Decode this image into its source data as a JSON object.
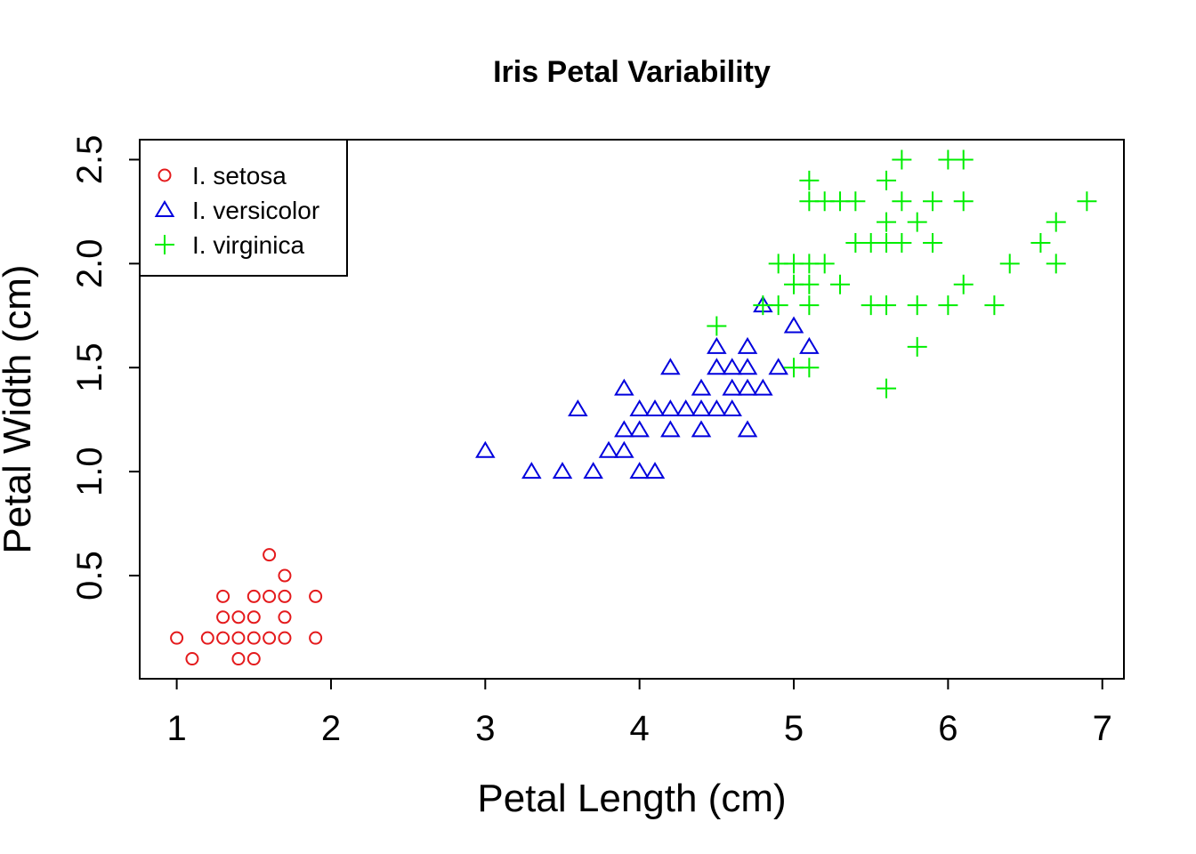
{
  "chart_data": {
    "type": "scatter",
    "title": "Iris Petal Variability",
    "xlabel": "Petal Length (cm)",
    "ylabel": "Petal Width (cm)",
    "xlim": [
      0.76,
      7.14
    ],
    "ylim": [
      0.004,
      2.596
    ],
    "x_ticks": [
      "1",
      "2",
      "3",
      "4",
      "5",
      "6",
      "7"
    ],
    "y_ticks": [
      "0.5",
      "1.0",
      "1.5",
      "2.0",
      "2.5"
    ],
    "grid": false,
    "legend_position": "top-left",
    "series": [
      {
        "name": "I. setosa",
        "marker": "circle",
        "color": "#e41a1c",
        "points": [
          [
            1.0,
            0.2
          ],
          [
            1.1,
            0.1
          ],
          [
            1.2,
            0.2
          ],
          [
            1.3,
            0.2
          ],
          [
            1.3,
            0.3
          ],
          [
            1.3,
            0.4
          ],
          [
            1.4,
            0.1
          ],
          [
            1.4,
            0.2
          ],
          [
            1.4,
            0.3
          ],
          [
            1.5,
            0.1
          ],
          [
            1.5,
            0.2
          ],
          [
            1.5,
            0.3
          ],
          [
            1.5,
            0.4
          ],
          [
            1.6,
            0.2
          ],
          [
            1.6,
            0.4
          ],
          [
            1.6,
            0.6
          ],
          [
            1.7,
            0.2
          ],
          [
            1.7,
            0.3
          ],
          [
            1.7,
            0.4
          ],
          [
            1.7,
            0.5
          ],
          [
            1.9,
            0.2
          ],
          [
            1.9,
            0.4
          ]
        ]
      },
      {
        "name": "I. versicolor",
        "marker": "triangle",
        "color": "#0000dd",
        "points": [
          [
            3.0,
            1.1
          ],
          [
            3.3,
            1.0
          ],
          [
            3.5,
            1.0
          ],
          [
            3.6,
            1.3
          ],
          [
            3.7,
            1.0
          ],
          [
            3.8,
            1.1
          ],
          [
            3.9,
            1.1
          ],
          [
            3.9,
            1.2
          ],
          [
            3.9,
            1.4
          ],
          [
            4.0,
            1.0
          ],
          [
            4.0,
            1.2
          ],
          [
            4.0,
            1.3
          ],
          [
            4.1,
            1.0
          ],
          [
            4.1,
            1.3
          ],
          [
            4.2,
            1.2
          ],
          [
            4.2,
            1.3
          ],
          [
            4.2,
            1.5
          ],
          [
            4.3,
            1.3
          ],
          [
            4.4,
            1.2
          ],
          [
            4.4,
            1.3
          ],
          [
            4.4,
            1.4
          ],
          [
            4.5,
            1.3
          ],
          [
            4.5,
            1.5
          ],
          [
            4.5,
            1.6
          ],
          [
            4.6,
            1.3
          ],
          [
            4.6,
            1.4
          ],
          [
            4.6,
            1.5
          ],
          [
            4.7,
            1.2
          ],
          [
            4.7,
            1.4
          ],
          [
            4.7,
            1.5
          ],
          [
            4.7,
            1.6
          ],
          [
            4.8,
            1.4
          ],
          [
            4.8,
            1.8
          ],
          [
            4.9,
            1.5
          ],
          [
            5.0,
            1.7
          ],
          [
            5.1,
            1.6
          ]
        ]
      },
      {
        "name": "I. virginica",
        "marker": "plus",
        "color": "#00ee00",
        "points": [
          [
            4.5,
            1.7
          ],
          [
            4.8,
            1.8
          ],
          [
            4.9,
            1.8
          ],
          [
            4.9,
            2.0
          ],
          [
            5.0,
            1.5
          ],
          [
            5.0,
            1.9
          ],
          [
            5.0,
            2.0
          ],
          [
            5.1,
            1.5
          ],
          [
            5.1,
            1.8
          ],
          [
            5.1,
            1.9
          ],
          [
            5.1,
            2.0
          ],
          [
            5.1,
            2.3
          ],
          [
            5.1,
            2.4
          ],
          [
            5.2,
            2.0
          ],
          [
            5.2,
            2.3
          ],
          [
            5.3,
            1.9
          ],
          [
            5.3,
            2.3
          ],
          [
            5.4,
            2.1
          ],
          [
            5.4,
            2.3
          ],
          [
            5.5,
            1.8
          ],
          [
            5.5,
            2.1
          ],
          [
            5.6,
            1.4
          ],
          [
            5.6,
            1.8
          ],
          [
            5.6,
            2.1
          ],
          [
            5.6,
            2.2
          ],
          [
            5.6,
            2.4
          ],
          [
            5.7,
            2.1
          ],
          [
            5.7,
            2.3
          ],
          [
            5.7,
            2.5
          ],
          [
            5.8,
            1.6
          ],
          [
            5.8,
            1.8
          ],
          [
            5.8,
            2.2
          ],
          [
            5.9,
            2.1
          ],
          [
            5.9,
            2.3
          ],
          [
            6.0,
            1.8
          ],
          [
            6.0,
            2.5
          ],
          [
            6.1,
            1.9
          ],
          [
            6.1,
            2.3
          ],
          [
            6.1,
            2.5
          ],
          [
            6.3,
            1.8
          ],
          [
            6.4,
            2.0
          ],
          [
            6.6,
            2.1
          ],
          [
            6.7,
            2.0
          ],
          [
            6.7,
            2.2
          ],
          [
            6.9,
            2.3
          ]
        ]
      }
    ]
  }
}
